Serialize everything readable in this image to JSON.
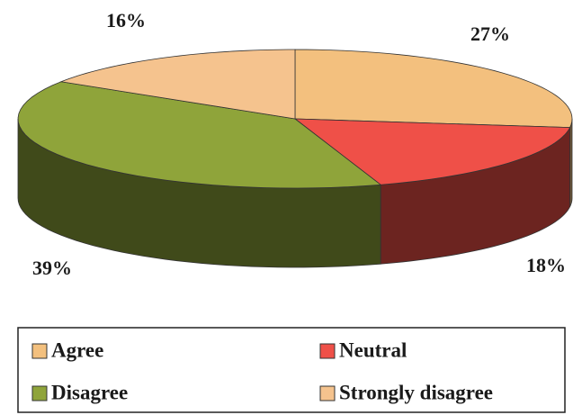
{
  "chart_data": {
    "type": "pie",
    "three_d": true,
    "categories": [
      "Agree",
      "Neutral",
      "Disagree",
      "Strongly disagree"
    ],
    "values": [
      27,
      18,
      39,
      16
    ],
    "value_labels": [
      "27%",
      "18%",
      "39%",
      "16%"
    ],
    "colors": [
      "#f3c07e",
      "#ef5048",
      "#8fa43a",
      "#f5c38e"
    ],
    "legend": "bottom"
  }
}
